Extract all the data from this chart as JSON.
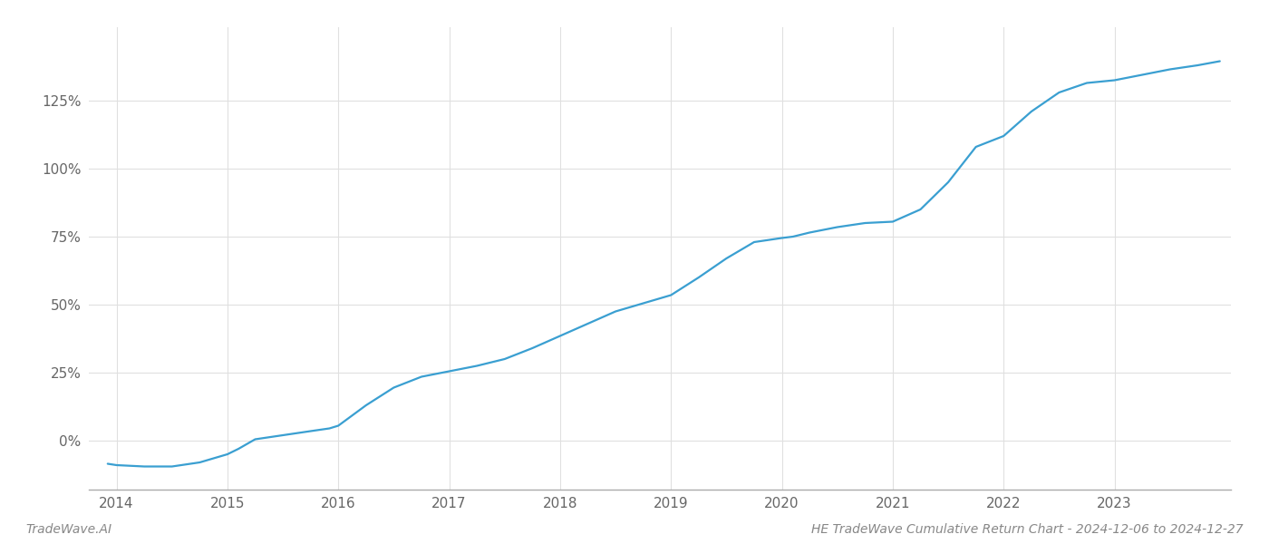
{
  "x_values": [
    2013.92,
    2014.0,
    2014.25,
    2014.5,
    2014.75,
    2015.0,
    2015.1,
    2015.25,
    2015.5,
    2015.75,
    2015.92,
    2016.0,
    2016.25,
    2016.5,
    2016.75,
    2017.0,
    2017.25,
    2017.5,
    2017.75,
    2018.0,
    2018.25,
    2018.5,
    2018.75,
    2019.0,
    2019.25,
    2019.5,
    2019.75,
    2020.0,
    2020.1,
    2020.25,
    2020.5,
    2020.75,
    2021.0,
    2021.25,
    2021.5,
    2021.75,
    2022.0,
    2022.25,
    2022.5,
    2022.75,
    2023.0,
    2023.25,
    2023.5,
    2023.75,
    2023.95
  ],
  "y_values": [
    -8.5,
    -9.0,
    -9.5,
    -9.5,
    -8.0,
    -5.0,
    -3.0,
    0.5,
    2.0,
    3.5,
    4.5,
    5.5,
    13.0,
    19.5,
    23.5,
    25.5,
    27.5,
    30.0,
    34.0,
    38.5,
    43.0,
    47.5,
    50.5,
    53.5,
    60.0,
    67.0,
    73.0,
    74.5,
    75.0,
    76.5,
    78.5,
    80.0,
    80.5,
    85.0,
    95.0,
    108.0,
    112.0,
    121.0,
    128.0,
    131.5,
    132.5,
    134.5,
    136.5,
    138.0,
    139.5
  ],
  "line_color": "#3a9fd1",
  "line_width": 1.6,
  "background_color": "#ffffff",
  "grid_color": "#e0e0e0",
  "footer_left": "TradeWave.AI",
  "footer_right": "HE TradeWave Cumulative Return Chart - 2024-12-06 to 2024-12-27",
  "x_ticks": [
    2014,
    2015,
    2016,
    2017,
    2018,
    2019,
    2020,
    2021,
    2022,
    2023
  ],
  "y_ticks": [
    0,
    25,
    50,
    75,
    100,
    125
  ],
  "y_tick_labels": [
    "0%",
    "25%",
    "50%",
    "75%",
    "100%",
    "125%"
  ],
  "xlim": [
    2013.75,
    2024.05
  ],
  "ylim": [
    -18,
    152
  ]
}
